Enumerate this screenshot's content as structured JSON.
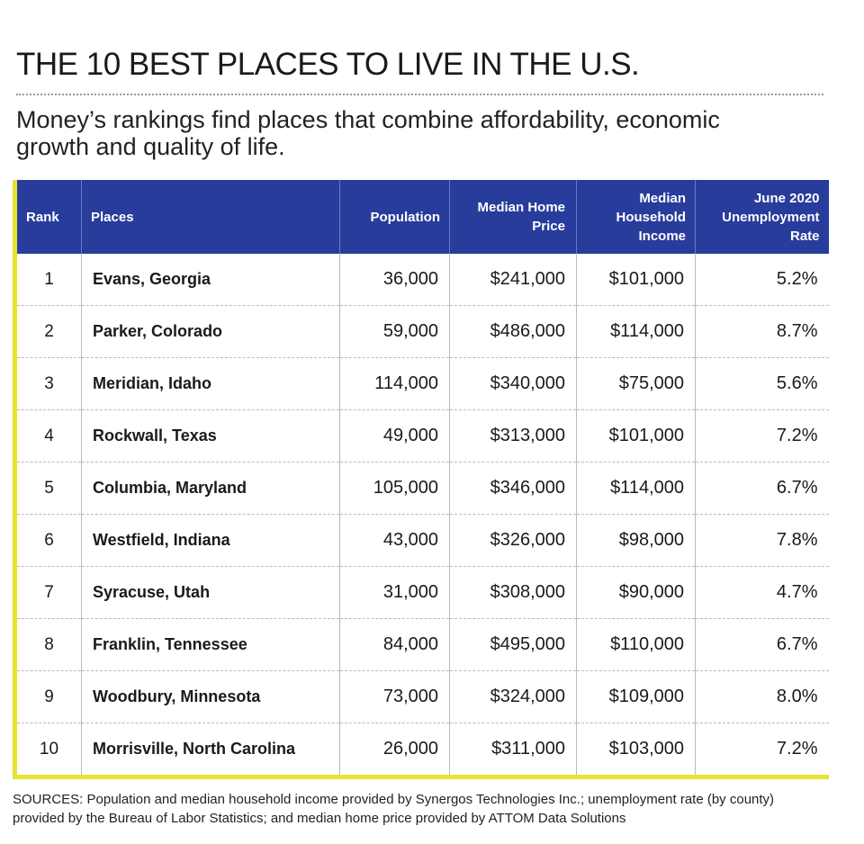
{
  "header": {
    "title": "THE 10 BEST PLACES TO LIVE IN THE U.S.",
    "subtitle": "Money’s rankings find places that combine affordability, economic growth and quality of life."
  },
  "table": {
    "columns": [
      "Rank",
      "Places",
      "Population",
      "Median Home Price",
      "Median Household Income",
      "June 2020 Unemployment Rate"
    ],
    "rows": [
      [
        "1",
        "Evans, Georgia",
        "36,000",
        "$241,000",
        "$101,000",
        "5.2%"
      ],
      [
        "2",
        "Parker, Colorado",
        "59,000",
        "$486,000",
        "$114,000",
        "8.7%"
      ],
      [
        "3",
        "Meridian, Idaho",
        "114,000",
        "$340,000",
        "$75,000",
        "5.6%"
      ],
      [
        "4",
        "Rockwall, Texas",
        "49,000",
        "$313,000",
        "$101,000",
        "7.2%"
      ],
      [
        "5",
        "Columbia, Maryland",
        "105,000",
        "$346,000",
        "$114,000",
        "6.7%"
      ],
      [
        "6",
        "Westfield, Indiana",
        "43,000",
        "$326,000",
        "$98,000",
        "7.8%"
      ],
      [
        "7",
        "Syracuse, Utah",
        "31,000",
        "$308,000",
        "$90,000",
        "4.7%"
      ],
      [
        "8",
        "Franklin, Tennessee",
        "84,000",
        "$495,000",
        "$110,000",
        "6.7%"
      ],
      [
        "9",
        "Woodbury, Minnesota",
        "73,000",
        "$324,000",
        "$109,000",
        "8.0%"
      ],
      [
        "10",
        "Morrisville, North Carolina",
        "26,000",
        "$311,000",
        "$103,000",
        "7.2%"
      ]
    ]
  },
  "sources": "SOURCES: Population and median household income provided by Synergos Technologies Inc.; unemployment rate (by county) provided by the Bureau of Labor Statistics; and median home price provided by ATTOM Data Solutions"
}
